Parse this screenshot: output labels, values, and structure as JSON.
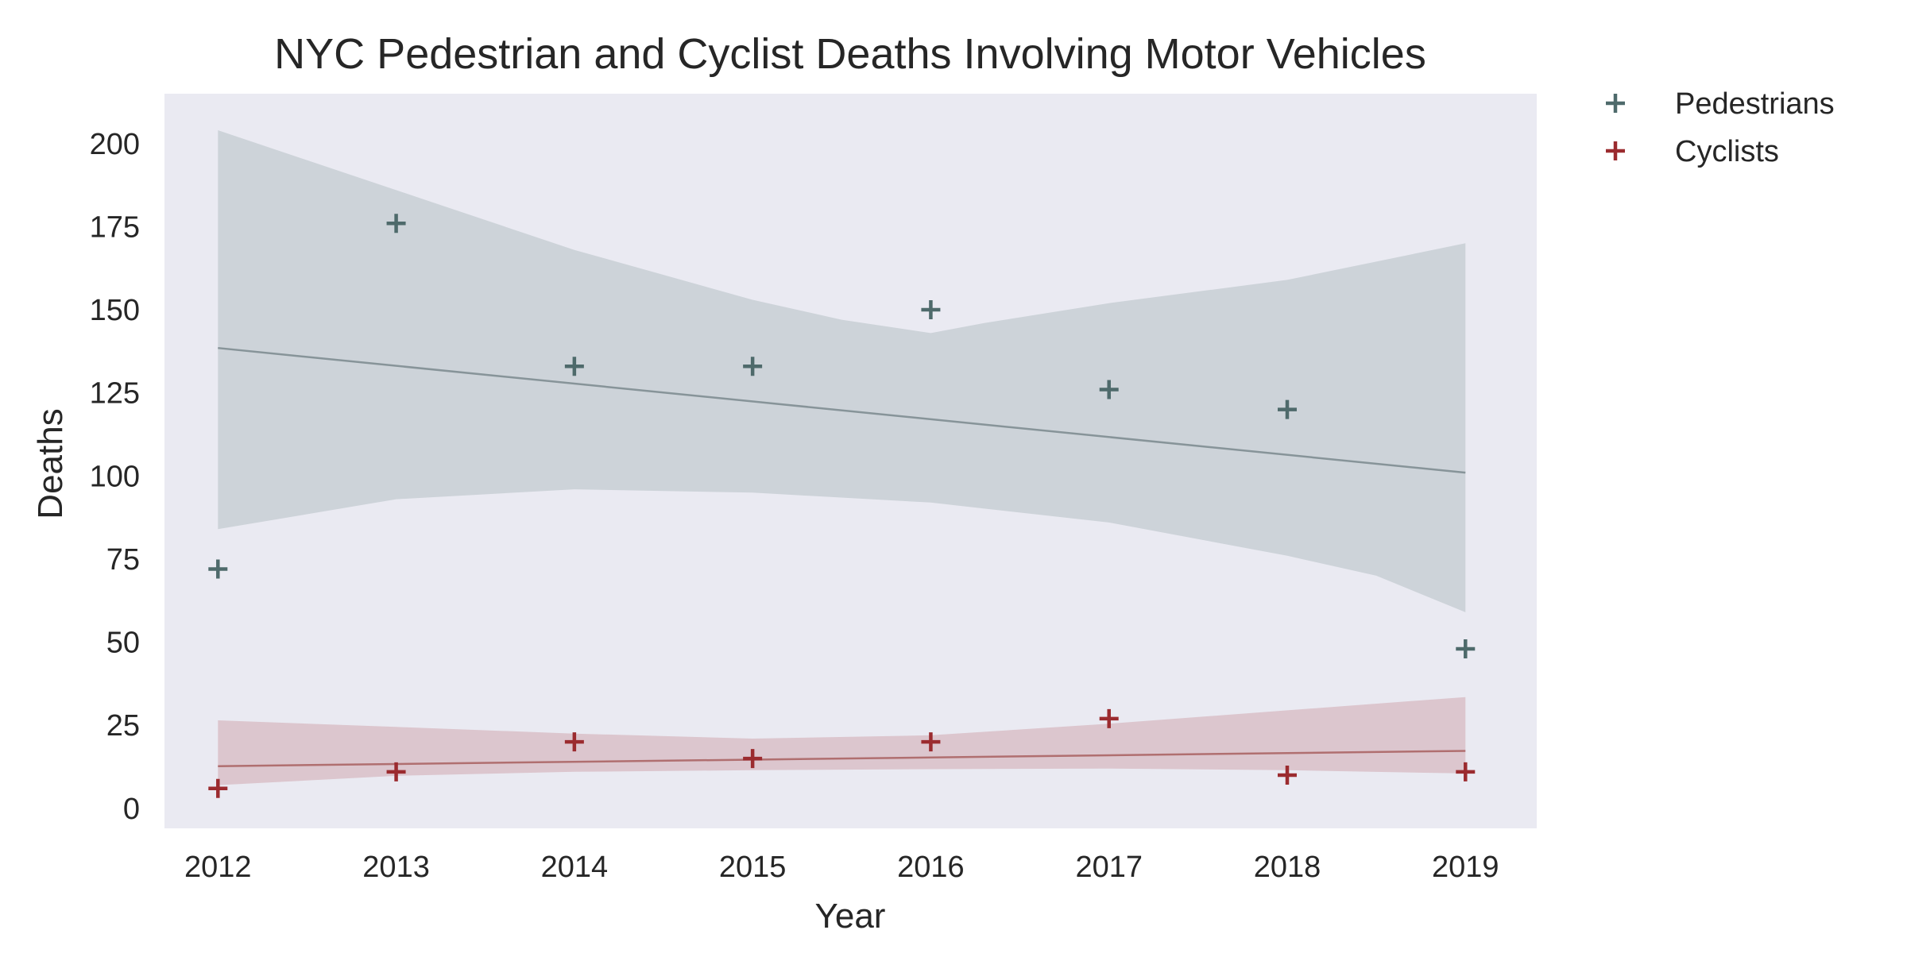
{
  "chart_data": {
    "type": "scatter",
    "title": "NYC Pedestrian and Cyclist Deaths Involving Motor Vehicles",
    "xlabel": "Year",
    "ylabel": "Deaths",
    "x": [
      2012,
      2013,
      2014,
      2015,
      2016,
      2017,
      2018,
      2019
    ],
    "xlim": [
      2011.7,
      2019.4
    ],
    "ylim": [
      -6,
      215
    ],
    "xticks": [
      2012,
      2013,
      2014,
      2015,
      2016,
      2017,
      2018,
      2019
    ],
    "yticks": [
      0,
      25,
      50,
      75,
      100,
      125,
      150,
      175,
      200
    ],
    "grid": false,
    "legend": "outside-top-right",
    "background": "#eaeaf2",
    "series": [
      {
        "name": "Pedestrians",
        "color": "#4e6a6b",
        "marker": "plus",
        "values": [
          72,
          176,
          133,
          133,
          150,
          126,
          120,
          48
        ],
        "fit": {
          "start": 138.5,
          "end": 101
        },
        "band_upper": [
          [
            2012,
            204
          ],
          [
            2013,
            186
          ],
          [
            2014,
            168
          ],
          [
            2015,
            153
          ],
          [
            2015.5,
            147
          ],
          [
            2016,
            143
          ],
          [
            2016.3,
            146
          ],
          [
            2017,
            152
          ],
          [
            2018,
            159
          ],
          [
            2019,
            170
          ]
        ],
        "band_lower": [
          [
            2012,
            84
          ],
          [
            2013,
            93
          ],
          [
            2014,
            96
          ],
          [
            2015,
            95
          ],
          [
            2016,
            92
          ],
          [
            2017,
            86
          ],
          [
            2018,
            76
          ],
          [
            2018.5,
            70
          ],
          [
            2019,
            59
          ]
        ],
        "band_color": "#cdd3d9",
        "fit_color": "#879499"
      },
      {
        "name": "Cyclists",
        "color": "#9b2b2f",
        "marker": "plus",
        "values": [
          6,
          11,
          20,
          15,
          20,
          27,
          10,
          11
        ],
        "fit": {
          "start": 12.7,
          "end": 17.3
        },
        "band_upper": [
          [
            2012,
            26.5
          ],
          [
            2013,
            24.5
          ],
          [
            2014,
            22.5
          ],
          [
            2015,
            21
          ],
          [
            2016,
            22
          ],
          [
            2017,
            25.5
          ],
          [
            2018,
            29.5
          ],
          [
            2019,
            33.5
          ]
        ],
        "band_lower": [
          [
            2012,
            7
          ],
          [
            2013,
            9.8
          ],
          [
            2014,
            11
          ],
          [
            2015,
            11.5
          ],
          [
            2016,
            11.8
          ],
          [
            2017,
            12
          ],
          [
            2018,
            11.5
          ],
          [
            2019,
            10.5
          ]
        ],
        "band_color": "#dcc6ce",
        "fit_color": "#b06f70"
      }
    ]
  }
}
